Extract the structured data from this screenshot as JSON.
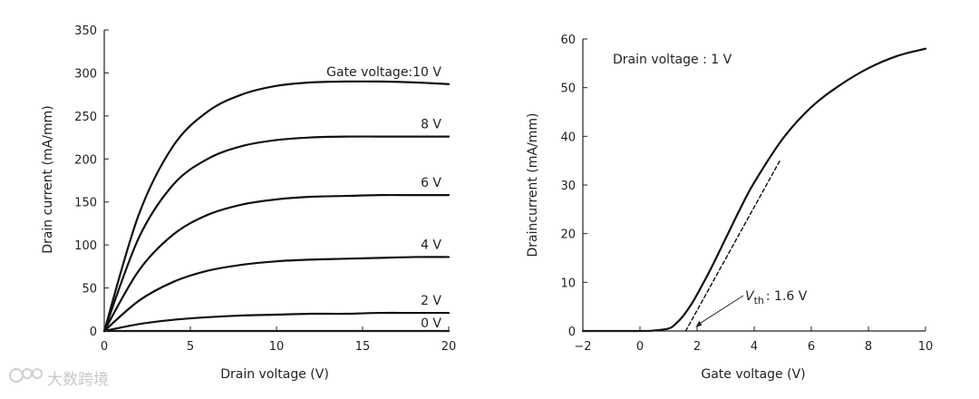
{
  "watermark": {
    "text": "大数跨境",
    "icon": "watermark-logo-icon"
  },
  "chart_data": [
    {
      "type": "line",
      "xlabel": "Drain voltage (V)",
      "ylabel": "Drain current (mA/mm)",
      "xlim": [
        0,
        20
      ],
      "ylim": [
        0,
        350
      ],
      "xticks": [
        "0",
        "5",
        "10",
        "15",
        "20"
      ],
      "yticks": [
        "0",
        "50",
        "100",
        "150",
        "200",
        "250",
        "300",
        "350"
      ],
      "grid": false,
      "legend": "none",
      "series": [
        {
          "name": "Gate voltage:10 V",
          "x": [
            0,
            2,
            4,
            6,
            8,
            10,
            12,
            14,
            16,
            18,
            20
          ],
          "y": [
            0,
            135,
            215,
            255,
            275,
            285,
            289,
            290,
            290,
            289,
            287
          ]
        },
        {
          "name": "8 V",
          "x": [
            0,
            2,
            4,
            6,
            8,
            10,
            12,
            14,
            16,
            18,
            20
          ],
          "y": [
            0,
            108,
            170,
            200,
            215,
            222,
            225,
            226,
            226,
            226,
            226
          ]
        },
        {
          "name": "6 V",
          "x": [
            0,
            2,
            4,
            6,
            8,
            10,
            12,
            14,
            16,
            18,
            20
          ],
          "y": [
            0,
            70,
            112,
            135,
            147,
            153,
            156,
            157,
            158,
            158,
            158
          ]
        },
        {
          "name": "4 V",
          "x": [
            0,
            2,
            4,
            6,
            8,
            10,
            12,
            14,
            16,
            18,
            20
          ],
          "y": [
            0,
            35,
            57,
            70,
            77,
            81,
            83,
            84,
            85,
            86,
            86
          ]
        },
        {
          "name": "2 V",
          "x": [
            0,
            2,
            4,
            6,
            8,
            10,
            12,
            14,
            16,
            18,
            20
          ],
          "y": [
            0,
            8,
            13,
            16,
            18,
            19,
            20,
            20,
            21,
            21,
            21
          ]
        },
        {
          "name": "0 V",
          "x": [
            0,
            5,
            10,
            15,
            20
          ],
          "y": [
            0,
            0,
            0,
            0,
            0
          ]
        }
      ],
      "annotations": [
        "Gate voltage:10 V",
        "8 V",
        "6 V",
        "4 V",
        "2 V",
        "0 V"
      ]
    },
    {
      "type": "line",
      "xlabel": "Gate voltage (V)",
      "ylabel": "Draincurrent (mA/mm)",
      "xlim": [
        -2,
        10
      ],
      "ylim": [
        0,
        60
      ],
      "xticks": [
        "−2",
        "0",
        "2",
        "4",
        "6",
        "8",
        "10"
      ],
      "yticks": [
        "0",
        "10",
        "20",
        "30",
        "40",
        "50",
        "60"
      ],
      "grid": false,
      "legend": "none",
      "title_annotation": "Drain voltage : 1 V",
      "series": [
        {
          "x": [
            -2,
            0,
            0.5,
            1,
            1.2,
            1.5,
            1.8,
            2,
            2.5,
            3,
            3.5,
            4,
            5,
            6,
            7,
            8,
            9,
            10
          ],
          "y": [
            0,
            0,
            0.1,
            0.5,
            1.2,
            3.0,
            5.5,
            7.5,
            13,
            19,
            25,
            30.5,
            39.5,
            46,
            50.5,
            54,
            56.5,
            58
          ]
        },
        {
          "style": "dashed",
          "x": [
            1.6,
            4.9
          ],
          "y": [
            0,
            35
          ]
        }
      ],
      "annotations": [
        {
          "symbol": "V",
          "subscript": "th",
          "text": ": 1.6 V"
        }
      ]
    }
  ]
}
